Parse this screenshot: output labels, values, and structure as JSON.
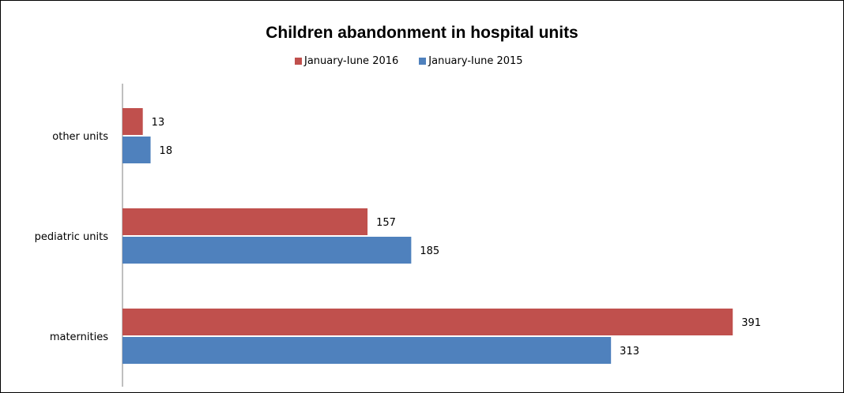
{
  "chart_data": {
    "type": "bar",
    "orientation": "horizontal",
    "title": "Children abandonment in hospital units",
    "categories": [
      "other units",
      "pediatric units",
      "maternities"
    ],
    "series": [
      {
        "name": "January-Iune 2016",
        "color": "#c0504d",
        "values": [
          13,
          157,
          391
        ]
      },
      {
        "name": "January-Iune 2015",
        "color": "#4f81bd",
        "values": [
          18,
          185,
          313
        ]
      }
    ],
    "xlim": [
      0,
      400
    ],
    "grid": false,
    "legend": "top"
  }
}
